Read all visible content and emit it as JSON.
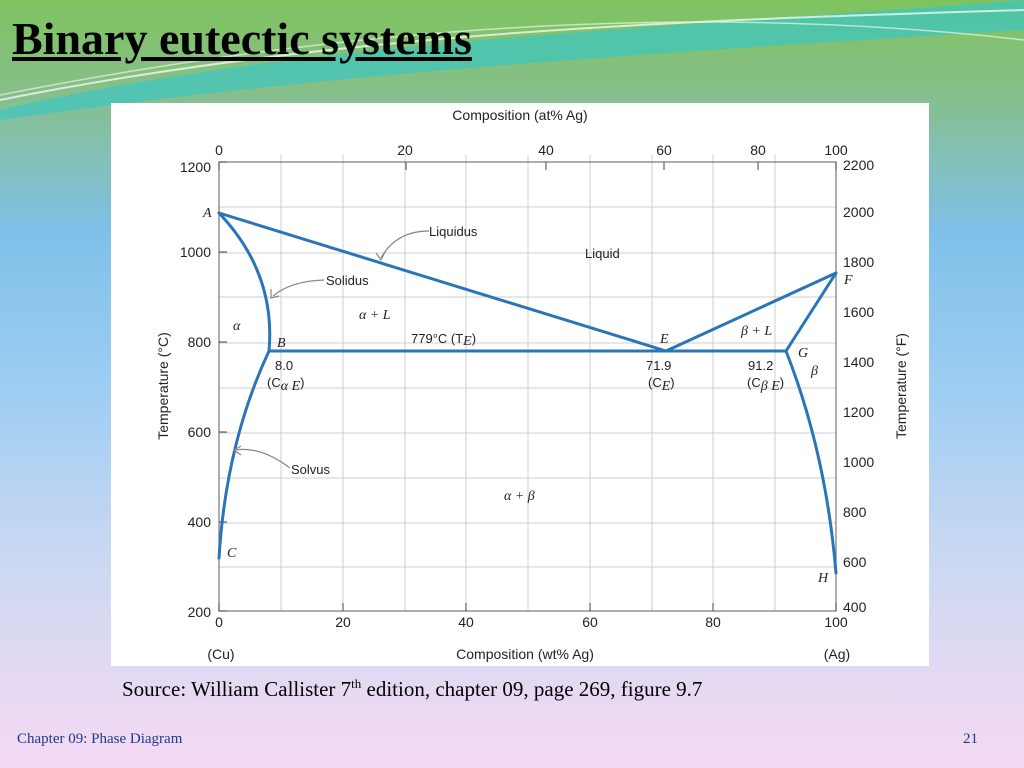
{
  "slide": {
    "title": "Binary eutectic systems",
    "caption_prefix": "Source: William Callister 7",
    "caption_sup": "th",
    "caption_suffix": " edition, chapter 09, page 269, figure 9.7",
    "footer_left": "Chapter 09: Phase Diagram",
    "page_number": "21"
  },
  "diagram": {
    "top_axis_label": "Composition (at% Ag)",
    "top_ticks": [
      "0",
      "20",
      "40",
      "60",
      "80",
      "100"
    ],
    "bottom_axis_label": "Composition (wt% Ag)",
    "bottom_ticks": [
      "0",
      "20",
      "40",
      "60",
      "80",
      "100"
    ],
    "left_axis_label": "Temperature (°C)",
    "left_ticks": [
      "1200",
      "1000",
      "800",
      "600",
      "400",
      "200"
    ],
    "right_axis_label": "Temperature (°F)",
    "right_ticks": [
      "2200",
      "2000",
      "1800",
      "1600",
      "1400",
      "1200",
      "1000",
      "800",
      "600",
      "400"
    ],
    "cu_label": "(Cu)",
    "ag_label": "(Ag)",
    "liquidus": "Liquidus",
    "solidus": "Solidus",
    "solvus": "Solvus",
    "liquid": "Liquid",
    "alpha": "α",
    "beta": "β",
    "alpha_l": "α + L",
    "beta_l": "β + L",
    "alpha_beta": "α + β",
    "eutectic_temp": "779°C (T",
    "eutectic_temp_sub": "E",
    "eutectic_temp_close": ")",
    "point_a": "A",
    "point_b": "B",
    "point_c": "C",
    "point_e": "E",
    "point_f": "F",
    "point_g": "G",
    "point_h": "H",
    "b_value": "8.0",
    "b_comp": "(C",
    "b_comp_sub": "α E",
    "b_comp_close": ")",
    "e_value": "71.9",
    "e_comp": "(C",
    "e_comp_sub": "E",
    "e_comp_close": ")",
    "g_value": "91.2",
    "g_comp": "(C",
    "g_comp_sub": "β E",
    "g_comp_close": ")",
    "line_color": "#2a74b8"
  }
}
